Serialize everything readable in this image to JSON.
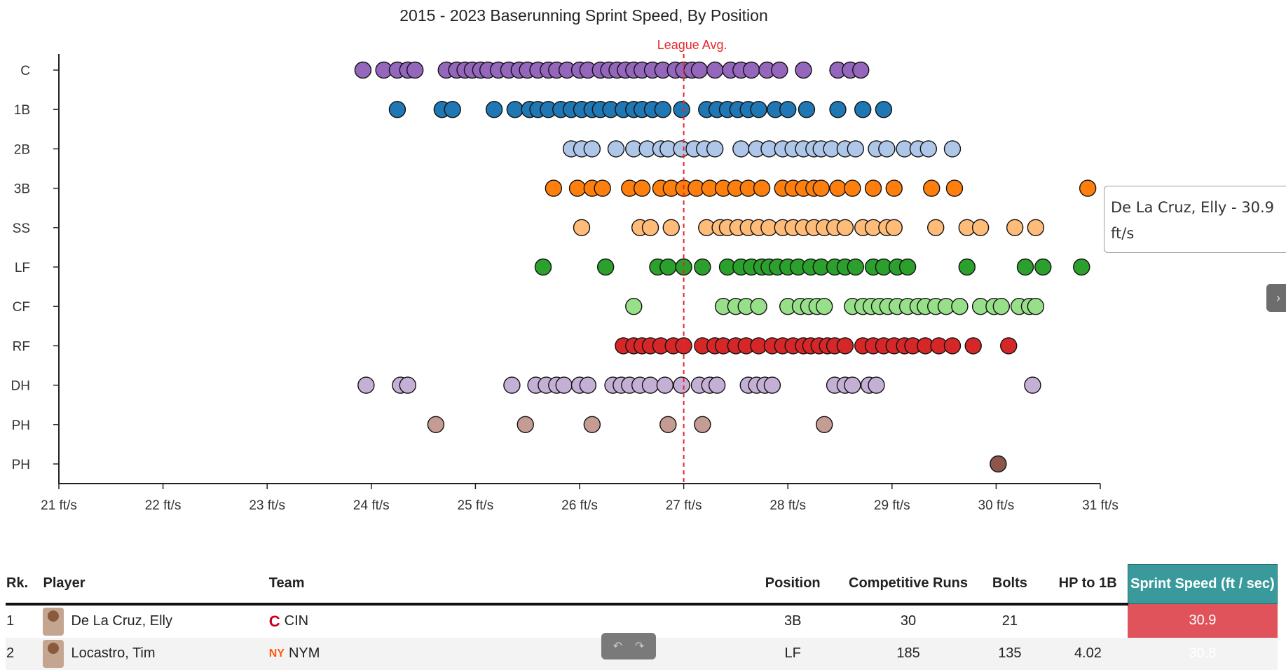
{
  "chart_data": {
    "type": "scatter",
    "title": "2015 - 2023 Baserunning Sprint Speed, By Position",
    "xlabel": "",
    "ylabel": "",
    "x_ticks": [
      "21 ft/s",
      "22 ft/s",
      "23 ft/s",
      "24 ft/s",
      "25 ft/s",
      "26 ft/s",
      "27 ft/s",
      "28 ft/s",
      "29 ft/s",
      "30 ft/s",
      "31 ft/s"
    ],
    "xlim": [
      21,
      31
    ],
    "categories": [
      "C",
      "1B",
      "2B",
      "3B",
      "SS",
      "LF",
      "CF",
      "RF",
      "DH",
      "PH",
      "PH"
    ],
    "reference_line": {
      "value": 27.0,
      "label": "League Avg.",
      "color": "#e8262b"
    },
    "grid": false,
    "series": [
      {
        "category_index": 0,
        "color": "#9467bd",
        "values": [
          23.92,
          24.12,
          24.25,
          24.35,
          24.42,
          24.72,
          24.82,
          24.9,
          24.97,
          25.05,
          25.12,
          25.22,
          25.32,
          25.42,
          25.5,
          25.6,
          25.7,
          25.78,
          25.88,
          26.0,
          26.08,
          26.2,
          26.28,
          26.36,
          26.44,
          26.52,
          26.6,
          26.7,
          26.8,
          26.92,
          27.0,
          27.08,
          27.15,
          27.3,
          27.45,
          27.55,
          27.65,
          27.8,
          27.92,
          28.15,
          28.48,
          28.6,
          28.7
        ]
      },
      {
        "category_index": 1,
        "color": "#1f77b4",
        "values": [
          24.25,
          24.68,
          24.78,
          25.18,
          25.38,
          25.52,
          25.6,
          25.7,
          25.82,
          25.92,
          26.02,
          26.12,
          26.2,
          26.3,
          26.42,
          26.52,
          26.6,
          26.7,
          26.8,
          26.98,
          27.22,
          27.32,
          27.42,
          27.52,
          27.62,
          27.72,
          27.88,
          28.0,
          28.18,
          28.48,
          28.72,
          28.92
        ]
      },
      {
        "category_index": 2,
        "color": "#aec7e8",
        "values": [
          25.92,
          26.02,
          26.12,
          26.35,
          26.52,
          26.65,
          26.78,
          26.85,
          26.98,
          27.1,
          27.2,
          27.3,
          27.55,
          27.7,
          27.82,
          27.95,
          28.05,
          28.15,
          28.25,
          28.32,
          28.42,
          28.55,
          28.65,
          28.85,
          28.95,
          29.12,
          29.25,
          29.35,
          29.58
        ]
      },
      {
        "category_index": 3,
        "color": "#ff7f0e",
        "values": [
          25.75,
          25.98,
          26.12,
          26.22,
          26.48,
          26.6,
          26.78,
          26.88,
          27.0,
          27.12,
          27.25,
          27.38,
          27.5,
          27.62,
          27.75,
          27.95,
          28.05,
          28.15,
          28.25,
          28.32,
          28.48,
          28.62,
          28.82,
          29.02,
          29.38,
          29.6,
          30.88
        ]
      },
      {
        "category_index": 4,
        "color": "#ffbb78",
        "values": [
          26.02,
          26.58,
          26.68,
          26.88,
          27.22,
          27.35,
          27.42,
          27.52,
          27.62,
          27.72,
          27.82,
          27.95,
          28.05,
          28.15,
          28.25,
          28.35,
          28.45,
          28.55,
          28.72,
          28.82,
          28.95,
          29.02,
          29.42,
          29.72,
          29.85,
          30.18,
          30.38
        ]
      },
      {
        "category_index": 5,
        "color": "#2ca02c",
        "values": [
          25.65,
          26.25,
          26.75,
          26.85,
          27.0,
          27.18,
          27.42,
          27.55,
          27.65,
          27.75,
          27.82,
          27.9,
          28.0,
          28.1,
          28.22,
          28.32,
          28.45,
          28.55,
          28.65,
          28.82,
          28.92,
          29.05,
          29.15,
          29.72,
          30.28,
          30.45,
          30.82
        ]
      },
      {
        "category_index": 6,
        "color": "#98df8a",
        "values": [
          26.52,
          27.38,
          27.5,
          27.6,
          27.72,
          28.0,
          28.12,
          28.2,
          28.28,
          28.35,
          28.62,
          28.72,
          28.8,
          28.88,
          28.96,
          29.05,
          29.15,
          29.25,
          29.32,
          29.42,
          29.52,
          29.65,
          29.85,
          29.98,
          30.05,
          30.22,
          30.32,
          30.38
        ]
      },
      {
        "category_index": 7,
        "color": "#d62728",
        "values": [
          26.42,
          26.52,
          26.6,
          26.68,
          26.78,
          26.9,
          27.0,
          27.18,
          27.3,
          27.38,
          27.5,
          27.6,
          27.72,
          27.85,
          27.95,
          28.05,
          28.15,
          28.22,
          28.3,
          28.38,
          28.45,
          28.55,
          28.72,
          28.82,
          28.92,
          29.02,
          29.12,
          29.2,
          29.32,
          29.45,
          29.58,
          29.78,
          30.12
        ]
      },
      {
        "category_index": 8,
        "color": "#c5b0d5",
        "values": [
          23.95,
          24.28,
          24.35,
          25.35,
          25.58,
          25.68,
          25.78,
          25.85,
          26.0,
          26.08,
          26.32,
          26.4,
          26.48,
          26.58,
          26.68,
          26.82,
          26.98,
          27.15,
          27.25,
          27.32,
          27.62,
          27.7,
          27.78,
          27.85,
          28.45,
          28.55,
          28.62,
          28.78,
          28.85,
          30.35
        ]
      },
      {
        "category_index": 9,
        "color": "#c49c94",
        "values": [
          24.62,
          25.48,
          26.12,
          26.85,
          27.18,
          28.35
        ]
      },
      {
        "category_index": 10,
        "color": "#8c564b",
        "values": [
          30.02
        ]
      }
    ]
  },
  "tooltip": {
    "text": "De La Cruz, Elly - 30.9 ft/s"
  },
  "table": {
    "headers": {
      "rank": "Rk.",
      "player": "Player",
      "team": "Team",
      "position": "Position",
      "runs": "Competitive Runs",
      "bolts": "Bolts",
      "hp1b": "HP to 1B",
      "speed": "Sprint Speed (ft / sec)"
    },
    "rows": [
      {
        "rank": "1",
        "player": "De La Cruz, Elly",
        "team": "CIN",
        "team_logo": "C",
        "team_color": "#c6011f",
        "position": "3B",
        "runs": "30",
        "bolts": "21",
        "hp1b": "",
        "speed": "30.9"
      },
      {
        "rank": "2",
        "player": "Locastro, Tim",
        "team": "NYM",
        "team_logo": "NY",
        "team_color": "#ff5910",
        "position": "LF",
        "runs": "185",
        "bolts": "135",
        "hp1b": "4.02",
        "speed": "30.8"
      }
    ]
  },
  "icons": {
    "side_tab": "chevron-right-icon",
    "undo": "undo-icon",
    "redo": "redo-icon"
  }
}
